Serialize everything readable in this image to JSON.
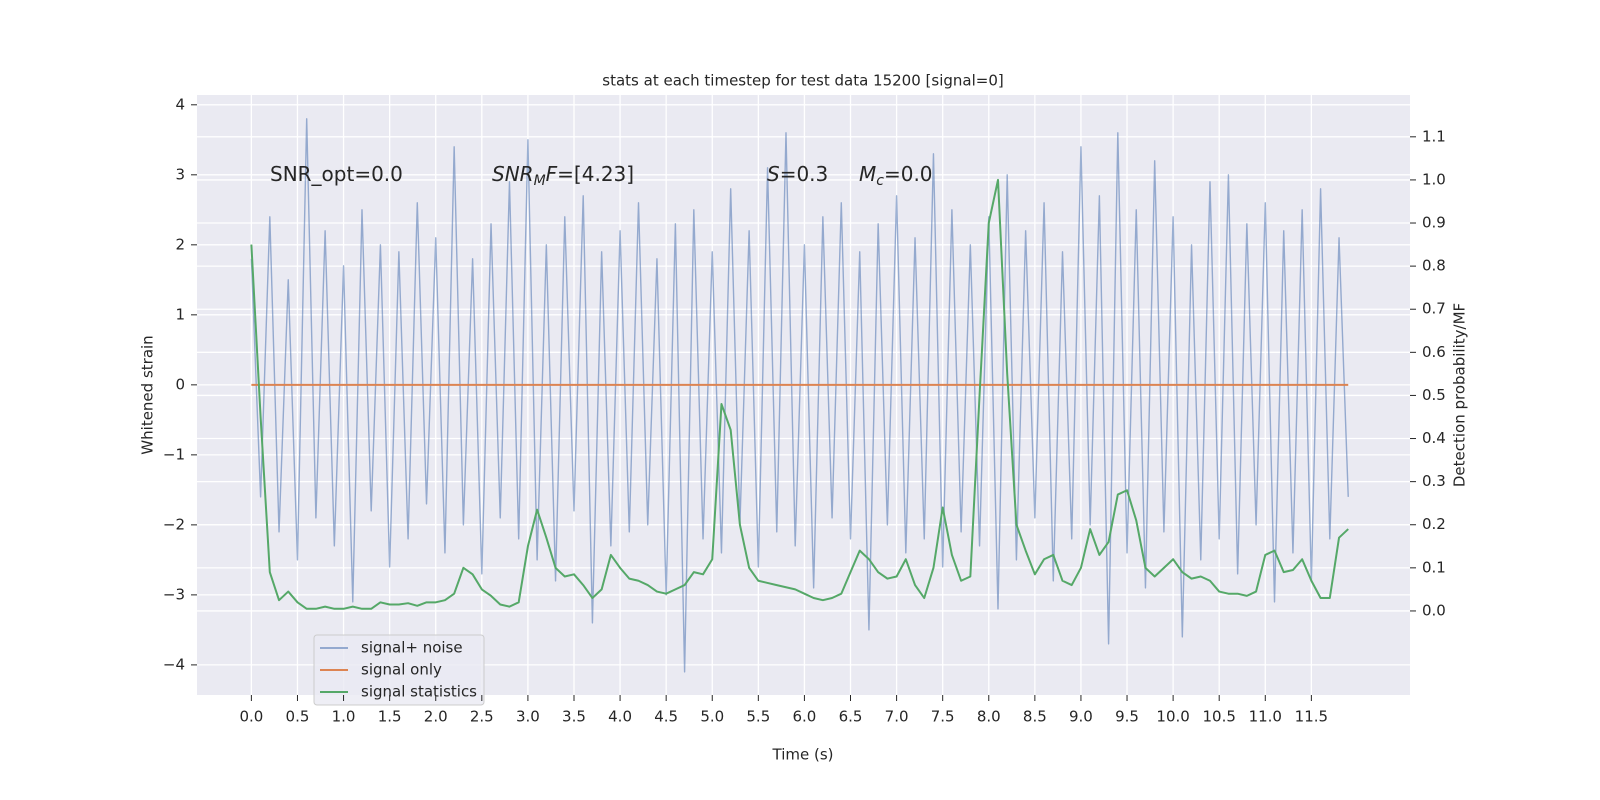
{
  "chart_data": {
    "type": "line",
    "title": "stats at each timestep for test data 15200 [signal=0]",
    "xlabel": "Time (s)",
    "ylabel": "Whitened strain",
    "y2label": "Detection probability/MF",
    "annotations": [
      [
        "SNR_opt=0.0"
      ],
      [
        "SNR",
        "M",
        "F",
        "=[4.23]"
      ],
      [
        "S",
        "=0.3"
      ],
      [
        "M",
        "c",
        "=0.0"
      ]
    ],
    "x": [
      0.0,
      0.1,
      0.2,
      0.3,
      0.4,
      0.5,
      0.6,
      0.7,
      0.8,
      0.9,
      1.0,
      1.1,
      1.2,
      1.3,
      1.4,
      1.5,
      1.6,
      1.7,
      1.8,
      1.9,
      2.0,
      2.1,
      2.2,
      2.3,
      2.4,
      2.5,
      2.6,
      2.7,
      2.8,
      2.9,
      3.0,
      3.1,
      3.2,
      3.3,
      3.4,
      3.5,
      3.6,
      3.7,
      3.8,
      3.9,
      4.0,
      4.1,
      4.2,
      4.3,
      4.4,
      4.5,
      4.6,
      4.7,
      4.8,
      4.9,
      5.0,
      5.1,
      5.2,
      5.3,
      5.4,
      5.5,
      5.6,
      5.7,
      5.8,
      5.9,
      6.0,
      6.1,
      6.2,
      6.3,
      6.4,
      6.5,
      6.6,
      6.7,
      6.8,
      6.9,
      7.0,
      7.1,
      7.2,
      7.3,
      7.4,
      7.5,
      7.6,
      7.7,
      7.8,
      7.9,
      8.0,
      8.1,
      8.2,
      8.3,
      8.4,
      8.5,
      8.6,
      8.7,
      8.8,
      8.9,
      9.0,
      9.1,
      9.2,
      9.3,
      9.4,
      9.5,
      9.6,
      9.7,
      9.8,
      9.9,
      10.0,
      10.1,
      10.2,
      10.3,
      10.4,
      10.5,
      10.6,
      10.7,
      10.8,
      10.9,
      11.0,
      11.1,
      11.2,
      11.3,
      11.4,
      11.5,
      11.6,
      11.7,
      11.8,
      11.9
    ],
    "series": [
      {
        "name": "signal+ noise",
        "color": "#4c72b0",
        "values": [
          1.8,
          -1.6,
          2.4,
          -2.1,
          1.5,
          -2.5,
          3.8,
          -1.9,
          2.2,
          -2.3,
          1.7,
          -3.1,
          2.5,
          -1.8,
          2.0,
          -2.6,
          1.9,
          -2.2,
          2.6,
          -1.7,
          2.1,
          -2.4,
          3.4,
          -2.0,
          1.8,
          -2.7,
          2.3,
          -1.9,
          2.9,
          -2.2,
          3.5,
          -2.5,
          2.0,
          -2.8,
          2.4,
          -1.8,
          2.7,
          -3.4,
          1.9,
          -2.3,
          2.2,
          -2.1,
          2.6,
          -2.0,
          1.8,
          -3.0,
          2.3,
          -4.1,
          2.5,
          -2.2,
          1.9,
          -2.4,
          2.8,
          -2.0,
          2.2,
          -2.6,
          3.1,
          -2.1,
          3.6,
          -2.3,
          2.0,
          -2.9,
          2.4,
          -1.9,
          2.6,
          -2.2,
          1.9,
          -3.5,
          2.3,
          -2.0,
          2.7,
          -2.4,
          2.1,
          -2.2,
          3.3,
          -2.6,
          2.5,
          -2.1,
          2.0,
          -2.3,
          2.4,
          -3.2,
          3.0,
          -2.5,
          2.2,
          -1.9,
          2.6,
          -2.8,
          1.9,
          -2.2,
          3.4,
          -2.0,
          2.7,
          -3.7,
          3.6,
          -2.4,
          2.5,
          -2.9,
          3.2,
          -2.1,
          2.4,
          -3.6,
          2.0,
          -2.5,
          2.9,
          -2.2,
          3.0,
          -2.7,
          2.3,
          -2.0,
          2.6,
          -3.1,
          2.2,
          -2.4,
          2.5,
          -2.8,
          2.8,
          -2.2,
          2.1,
          -1.6
        ]
      },
      {
        "name": "signal only",
        "color": "#dd8452",
        "values": [
          0,
          0,
          0,
          0,
          0,
          0,
          0,
          0,
          0,
          0,
          0,
          0,
          0,
          0,
          0,
          0,
          0,
          0,
          0,
          0,
          0,
          0,
          0,
          0,
          0,
          0,
          0,
          0,
          0,
          0,
          0,
          0,
          0,
          0,
          0,
          0,
          0,
          0,
          0,
          0,
          0,
          0,
          0,
          0,
          0,
          0,
          0,
          0,
          0,
          0,
          0,
          0,
          0,
          0,
          0,
          0,
          0,
          0,
          0,
          0,
          0,
          0,
          0,
          0,
          0,
          0,
          0,
          0,
          0,
          0,
          0,
          0,
          0,
          0,
          0,
          0,
          0,
          0,
          0,
          0,
          0,
          0,
          0,
          0,
          0,
          0,
          0,
          0,
          0,
          0,
          0,
          0,
          0,
          0,
          0,
          0,
          0,
          0,
          0,
          0,
          0,
          0,
          0,
          0,
          0,
          0,
          0,
          0,
          0,
          0,
          0,
          0,
          0,
          0,
          0,
          0,
          0,
          0,
          0,
          0
        ]
      },
      {
        "name": "signal statistics",
        "color": "#55a868",
        "axis": "y2",
        "values": [
          0.85,
          0.45,
          0.09,
          0.025,
          0.045,
          0.02,
          0.005,
          0.005,
          0.01,
          0.005,
          0.005,
          0.01,
          0.005,
          0.005,
          0.02,
          0.015,
          0.015,
          0.018,
          0.012,
          0.02,
          0.02,
          0.025,
          0.04,
          0.1,
          0.085,
          0.05,
          0.035,
          0.015,
          0.01,
          0.02,
          0.15,
          0.235,
          0.17,
          0.1,
          0.08,
          0.085,
          0.06,
          0.03,
          0.05,
          0.13,
          0.1,
          0.075,
          0.07,
          0.06,
          0.045,
          0.04,
          0.05,
          0.06,
          0.09,
          0.085,
          0.12,
          0.48,
          0.42,
          0.2,
          0.1,
          0.07,
          0.065,
          0.06,
          0.055,
          0.05,
          0.04,
          0.03,
          0.025,
          0.03,
          0.04,
          0.09,
          0.14,
          0.12,
          0.09,
          0.075,
          0.08,
          0.12,
          0.06,
          0.03,
          0.1,
          0.24,
          0.13,
          0.07,
          0.08,
          0.5,
          0.9,
          1.0,
          0.55,
          0.2,
          0.14,
          0.085,
          0.12,
          0.13,
          0.07,
          0.06,
          0.1,
          0.19,
          0.13,
          0.16,
          0.27,
          0.28,
          0.21,
          0.1,
          0.08,
          0.1,
          0.12,
          0.09,
          0.075,
          0.08,
          0.07,
          0.045,
          0.04,
          0.04,
          0.035,
          0.045,
          0.13,
          0.14,
          0.09,
          0.095,
          0.12,
          0.07,
          0.03,
          0.03,
          0.17,
          0.19
        ]
      }
    ],
    "xlim": [
      -0.59,
      12.57
    ],
    "xticks": [
      {
        "value": 0,
        "label": "0.0"
      },
      0.5,
      {
        "value": 1,
        "label": "1.0"
      },
      1.5,
      {
        "value": 2,
        "label": "2.0"
      },
      2.5,
      {
        "value": 3,
        "label": "3.0"
      },
      3.5,
      {
        "value": 4,
        "label": "4.0"
      },
      4.5,
      {
        "value": 5,
        "label": "5.0"
      },
      5.5,
      {
        "value": 6,
        "label": "6.0"
      },
      6.5,
      {
        "value": 7,
        "label": "7.0"
      },
      7.5,
      {
        "value": 8,
        "label": "8.0"
      },
      8.5,
      {
        "value": 9,
        "label": "9.0"
      },
      9.5,
      {
        "value": 10,
        "label": "10.0"
      },
      10.5,
      {
        "value": 11,
        "label": "11.0"
      },
      11.5
    ],
    "ylim": [
      -4.43,
      4.14
    ],
    "yticks": [
      {
        "value": -4,
        "label": "−4"
      },
      {
        "value": -3,
        "label": "−3"
      },
      {
        "value": -2,
        "label": "−2"
      },
      {
        "value": -1,
        "label": "−1"
      },
      0,
      1,
      2,
      3,
      4
    ],
    "y2lim": [
      -0.195,
      1.197
    ],
    "y2ticks": [
      {
        "value": 0,
        "label": "0.0"
      },
      0.1,
      0.2,
      0.3,
      0.4,
      0.5,
      0.6,
      0.7,
      0.8,
      0.9,
      {
        "value": 1,
        "label": "1.0"
      },
      1.1
    ],
    "grid": true,
    "legend": "lower left"
  }
}
